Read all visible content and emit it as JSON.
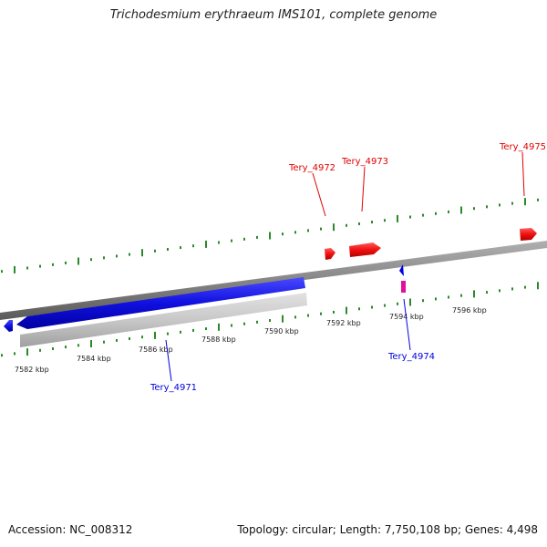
{
  "title": "Trichodesmium erythraeum IMS101, complete genome",
  "footer": {
    "accession": "Accession: NC_008312",
    "stats": "Topology: circular; Length: 7,750,108 bp; Genes: 4,498"
  },
  "axis": {
    "tick_labels": [
      "7582 kbp",
      "7584 kbp",
      "7586 kbp",
      "7588 kbp",
      "7590 kbp",
      "7592 kbp",
      "7594 kbp",
      "7596 kbp"
    ]
  },
  "genes": {
    "tery_4971": "Tery_4971",
    "tery_4972": "Tery_4972",
    "tery_4973": "Tery_4973",
    "tery_4974": "Tery_4974",
    "tery_4975": "Tery_4975"
  },
  "colors": {
    "forward_strand": "#e00000",
    "reverse_strand": "#0000e0",
    "tick": "#2a8a2a",
    "backbone": "#888888"
  }
}
